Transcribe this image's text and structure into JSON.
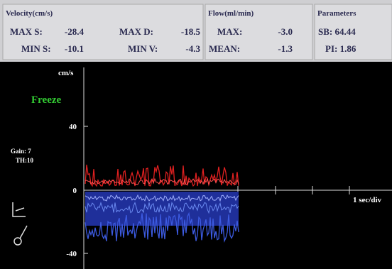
{
  "velocity": {
    "title": "Velocity(cm/s)",
    "max_s_label": "MAX S:",
    "max_s": "-28.4",
    "max_d_label": "MAX D:",
    "max_d": "-18.5",
    "min_s_label": "MIN S:",
    "min_s": "-10.1",
    "min_v_label": "MIN V:",
    "min_v": "-4.3"
  },
  "flow": {
    "title": "Flow(ml/min)",
    "max_label": "MAX:",
    "max": "-3.0",
    "mean_label": "MEAN:",
    "mean": "-1.3"
  },
  "parameters": {
    "title": "Parameters",
    "sb": "SB: 64.44",
    "pi": "PI: 1.86"
  },
  "scope": {
    "unit": "cm/s",
    "status": "Freeze",
    "ticks": [
      "40",
      "0",
      "-40"
    ],
    "gain": "Gain: 7",
    "th": "TH:10",
    "time_scale": "1 sec/div"
  }
}
